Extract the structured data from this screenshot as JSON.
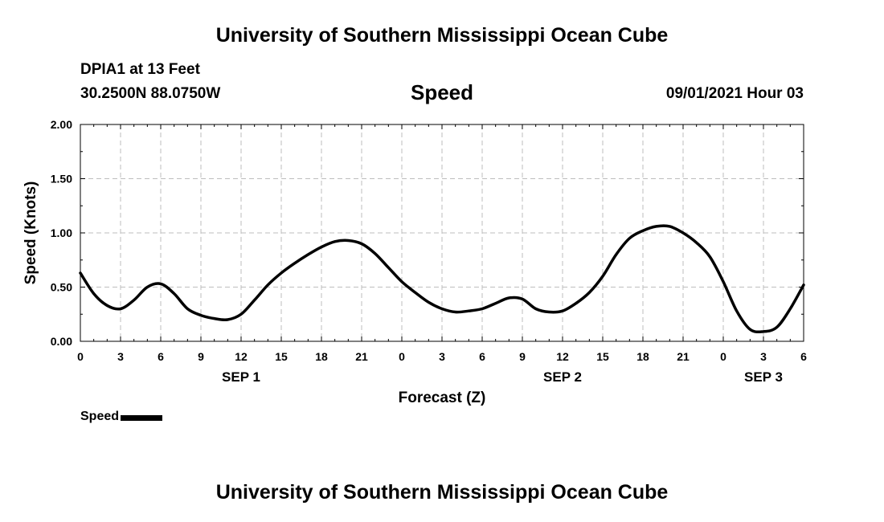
{
  "header": {
    "title_top": "University of Southern Mississippi Ocean Cube",
    "station": "DPIA1 at 13 Feet",
    "coordinates": "30.2500N  88.0750W",
    "datetime": "09/01/2021 Hour 03",
    "title_bottom": "University of Southern Mississippi Ocean Cube"
  },
  "legend": {
    "label": "Speed",
    "color": "#000000"
  },
  "chart_data": {
    "type": "line",
    "title": "Speed",
    "xlabel": "Forecast (Z)",
    "ylabel": "Speed (Knots)",
    "xlim": [
      0,
      54
    ],
    "ylim": [
      0,
      2.0
    ],
    "grid": true,
    "x_ticks": [
      0,
      3,
      6,
      9,
      12,
      15,
      18,
      21,
      24,
      27,
      30,
      33,
      36,
      39,
      42,
      45,
      48,
      51,
      54
    ],
    "x_tick_labels": [
      "0",
      "3",
      "6",
      "9",
      "12",
      "15",
      "18",
      "21",
      "0",
      "3",
      "6",
      "9",
      "12",
      "15",
      "18",
      "21",
      "0",
      "3",
      "6"
    ],
    "y_ticks": [
      0,
      0.5,
      1.0,
      1.5,
      2.0
    ],
    "y_tick_labels": [
      "0.00",
      "0.50",
      "1.00",
      "1.50",
      "2.00"
    ],
    "date_labels": [
      {
        "x": 12,
        "label": "SEP 1"
      },
      {
        "x": 36,
        "label": "SEP 2"
      },
      {
        "x": 51,
        "label": "SEP 3"
      }
    ],
    "series": [
      {
        "name": "Speed",
        "x": [
          0,
          1,
          2,
          3,
          4,
          5,
          6,
          7,
          8,
          9,
          10,
          11,
          12,
          13,
          14,
          15,
          16,
          17,
          18,
          19,
          20,
          21,
          22,
          23,
          24,
          25,
          26,
          27,
          28,
          29,
          30,
          31,
          32,
          33,
          34,
          35,
          36,
          37,
          38,
          39,
          40,
          41,
          42,
          43,
          44,
          45,
          46,
          47,
          48,
          49,
          50,
          51,
          52,
          53,
          54
        ],
        "values": [
          0.63,
          0.44,
          0.33,
          0.3,
          0.38,
          0.5,
          0.53,
          0.44,
          0.3,
          0.24,
          0.21,
          0.2,
          0.25,
          0.38,
          0.52,
          0.63,
          0.72,
          0.8,
          0.87,
          0.92,
          0.93,
          0.9,
          0.81,
          0.68,
          0.55,
          0.45,
          0.36,
          0.3,
          0.27,
          0.28,
          0.3,
          0.35,
          0.4,
          0.39,
          0.3,
          0.27,
          0.28,
          0.35,
          0.45,
          0.6,
          0.8,
          0.95,
          1.02,
          1.06,
          1.06,
          1.0,
          0.91,
          0.78,
          0.55,
          0.28,
          0.11,
          0.09,
          0.13,
          0.3,
          0.52
        ]
      }
    ]
  }
}
